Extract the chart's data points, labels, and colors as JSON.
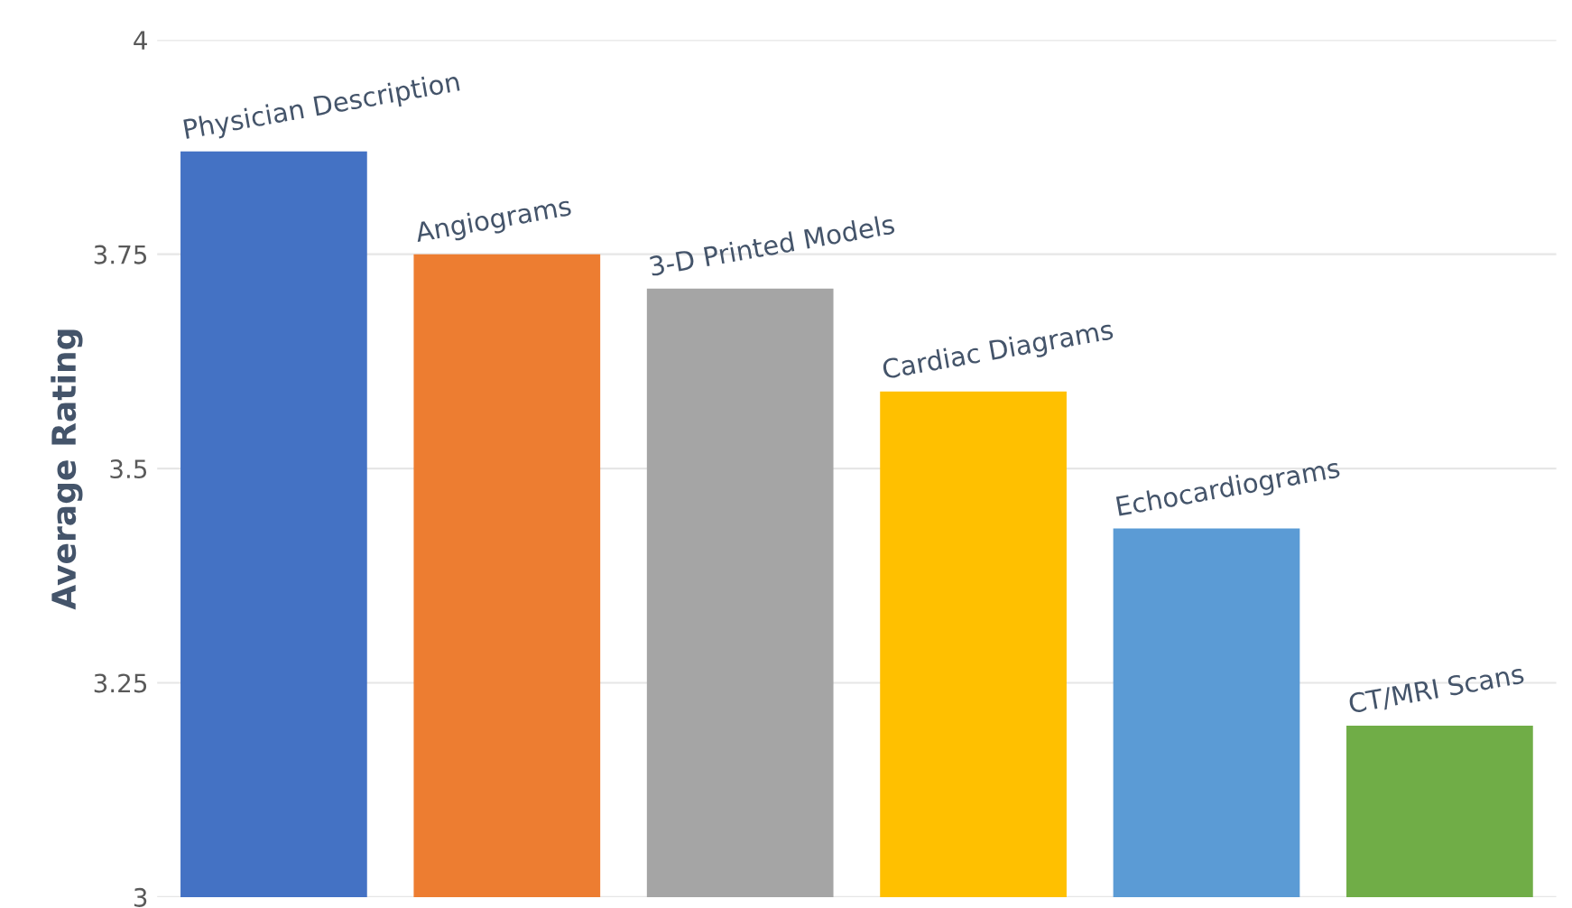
{
  "chart_data": {
    "type": "bar",
    "ylabel": "Average Rating",
    "categories": [
      "Physician Description",
      "Angiograms",
      "3-D Printed Models",
      "Cardiac Diagrams",
      "Echocardiograms",
      "CT/MRI Scans"
    ],
    "values": [
      3.87,
      3.75,
      3.71,
      3.59,
      3.43,
      3.2
    ],
    "colors": [
      "#4472c4",
      "#ed7d31",
      "#a5a5a5",
      "#ffc000",
      "#5b9bd5",
      "#70ad47"
    ],
    "ylim": [
      3,
      4
    ],
    "yticks": [
      3,
      3.25,
      3.5,
      3.75,
      4
    ],
    "grid": "y",
    "legend": false
  }
}
